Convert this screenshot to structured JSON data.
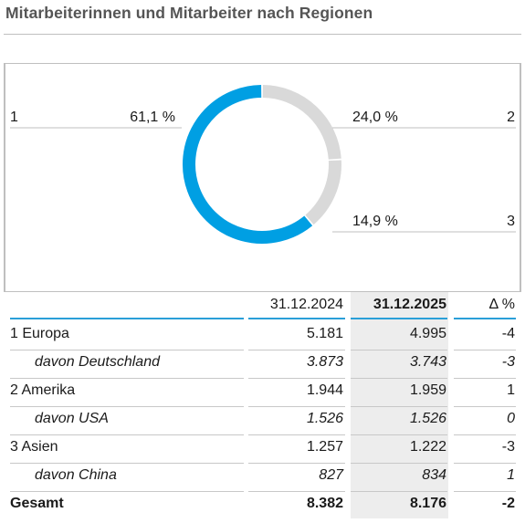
{
  "title": "Mitarbeiterinnen und Mitarbeiter nach Regionen",
  "colors": {
    "accent": "#009fe3",
    "inactive": "#d9d9d9",
    "highlight_col": "#ededed"
  },
  "chart_data": {
    "type": "pie",
    "variant": "donut",
    "slices": [
      {
        "id": "1",
        "value": 61.1,
        "label": "61,1 %",
        "color": "#009fe3"
      },
      {
        "id": "2",
        "value": 24.0,
        "label": "24,0 %",
        "color": "#d9d9d9"
      },
      {
        "id": "3",
        "value": 14.9,
        "label": "14,9 %",
        "color": "#d9d9d9"
      }
    ]
  },
  "table": {
    "headers": [
      "",
      "31.12.2024",
      "31.12.2025",
      "Δ %"
    ],
    "rows": [
      {
        "label": "1 Europa",
        "v2024": "5.181",
        "v2025": "4.995",
        "delta": "-4",
        "style": "normal"
      },
      {
        "label": "davon Deutschland",
        "v2024": "3.873",
        "v2025": "3.743",
        "delta": "-3",
        "style": "italic"
      },
      {
        "label": "2 Amerika",
        "v2024": "1.944",
        "v2025": "1.959",
        "delta": "1",
        "style": "normal"
      },
      {
        "label": "davon USA",
        "v2024": "1.526",
        "v2025": "1.526",
        "delta": "0",
        "style": "italic"
      },
      {
        "label": "3 Asien",
        "v2024": "1.257",
        "v2025": "1.222",
        "delta": "-3",
        "style": "normal"
      },
      {
        "label": "davon China",
        "v2024": "827",
        "v2025": "834",
        "delta": "1",
        "style": "italic"
      },
      {
        "label": "Gesamt",
        "v2024": "8.382",
        "v2025": "8.176",
        "delta": "-2",
        "style": "bold"
      }
    ]
  }
}
